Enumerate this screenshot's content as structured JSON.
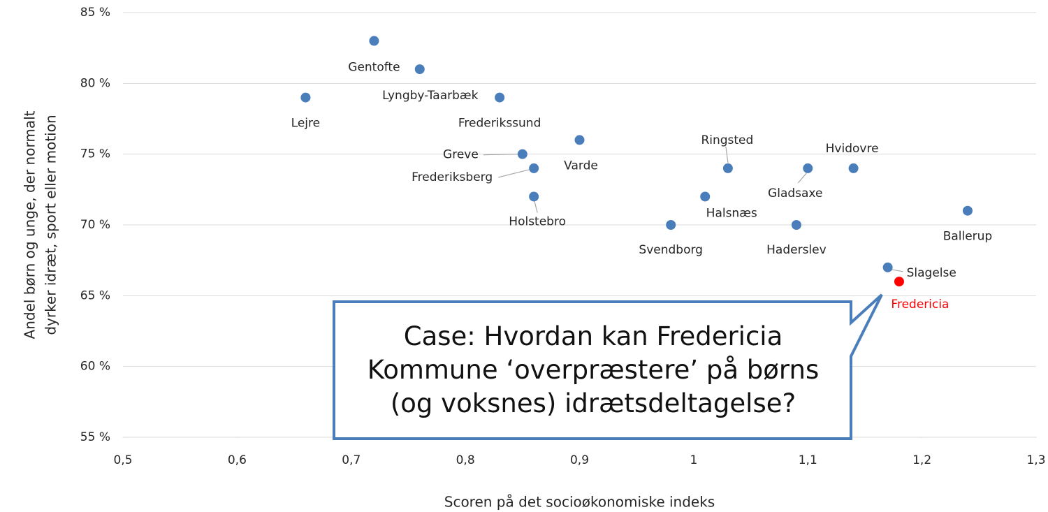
{
  "chart_data": {
    "type": "scatter",
    "x_label": "Scoren på det socioøkonomiske indeks",
    "y_label": [
      "Andel børn og unge, der normalt",
      "dyrker idræt, sport eller motion"
    ],
    "annotation": "Case: Hvordan kan Fredericia Kommune ‘overpræstere’ på børns (og voksnes) idrætsdeltagelse?",
    "point_labels": [
      "Gentofte",
      "Lyngby-Taarbæk",
      "Lejre",
      "Frederikssund",
      "Greve",
      "Varde",
      "Frederiksberg",
      "Holstebro",
      "Ringsted",
      "Gladsaxe",
      "Hvidovre",
      "Halsnæs",
      "Svendborg",
      "Haderslev",
      "Ballerup",
      "Slagelse",
      "Fredericia"
    ],
    "x": [
      0.72,
      0.76,
      0.66,
      0.83,
      0.85,
      0.9,
      0.86,
      0.86,
      1.03,
      1.1,
      1.14,
      1.01,
      0.98,
      1.09,
      1.24,
      1.17,
      1.18
    ],
    "values": [
      83,
      81,
      79,
      79,
      75,
      76,
      74,
      72,
      74,
      74,
      74,
      72,
      70,
      70,
      71,
      67,
      66
    ],
    "colors": [
      "#4a7ebb",
      "#4a7ebb",
      "#4a7ebb",
      "#4a7ebb",
      "#4a7ebb",
      "#4a7ebb",
      "#4a7ebb",
      "#4a7ebb",
      "#4a7ebb",
      "#4a7ebb",
      "#4a7ebb",
      "#4a7ebb",
      "#4a7ebb",
      "#4a7ebb",
      "#4a7ebb",
      "#4a7ebb",
      "#ff0000"
    ],
    "xlim": [
      0.5,
      1.3
    ],
    "xticks": [
      {
        "value": 0.5,
        "label": "0,5"
      },
      {
        "value": 0.6,
        "label": "0,6"
      },
      {
        "value": 0.7,
        "label": "0,7"
      },
      {
        "value": 0.8,
        "label": "0,8"
      },
      {
        "value": 0.9,
        "label": "0,9"
      },
      1,
      {
        "value": 1.1,
        "label": "1,1"
      },
      {
        "value": 1.2,
        "label": "1,2"
      },
      {
        "value": 1.3,
        "label": "1,3"
      }
    ],
    "ylim": [
      55,
      85
    ],
    "yticks": [
      {
        "value": 55,
        "label": "55 %"
      },
      {
        "value": 60,
        "label": "60 %"
      },
      {
        "value": 65,
        "label": "65 %"
      },
      {
        "value": 70,
        "label": "70 %"
      },
      {
        "value": 75,
        "label": "75 %"
      },
      {
        "value": 80,
        "label": "80 %"
      },
      {
        "value": 85,
        "label": "85 %"
      }
    ],
    "grid": true
  }
}
